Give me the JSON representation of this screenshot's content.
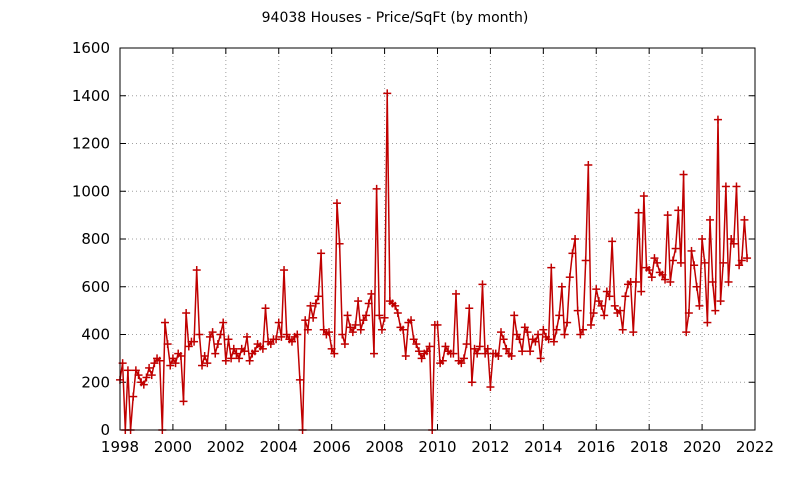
{
  "chart_data": {
    "type": "line",
    "title": "94038 Houses - Price/SqFt (by month)",
    "xlabel": "",
    "ylabel": "",
    "xlim": [
      1998,
      2022
    ],
    "ylim": [
      0,
      1600
    ],
    "grid": true,
    "legend": "none",
    "x_ticks": [
      "1998",
      "2000",
      "2002",
      "2004",
      "2006",
      "2008",
      "2010",
      "2012",
      "2014",
      "2016",
      "2018",
      "2020",
      "2022"
    ],
    "y_ticks": [
      "0",
      "200",
      "400",
      "600",
      "800",
      "1000",
      "1200",
      "1400",
      "1600"
    ],
    "series_color": "#c00000",
    "series": [
      {
        "x": [
          1998.0,
          1998.1,
          1998.2,
          1998.3,
          1998.4,
          1998.5,
          1998.6,
          1998.7,
          1998.8,
          1998.9,
          1999.0,
          1999.1,
          1999.2,
          1999.3,
          1999.4,
          1999.5,
          1999.6,
          1999.7,
          1999.8,
          1999.9,
          2000.0,
          2000.1,
          2000.2,
          2000.3,
          2000.4,
          2000.5,
          2000.6,
          2000.7,
          2000.8,
          2000.9,
          2001.0,
          2001.1,
          2001.2,
          2001.3,
          2001.4,
          2001.5,
          2001.6,
          2001.7,
          2001.8,
          2001.9,
          2002.0,
          2002.1,
          2002.2,
          2002.3,
          2002.4,
          2002.5,
          2002.6,
          2002.7,
          2002.8,
          2002.9,
          2003.0,
          2003.1,
          2003.2,
          2003.3,
          2003.4,
          2003.5,
          2003.6,
          2003.7,
          2003.8,
          2003.9,
          2004.0,
          2004.1,
          2004.2,
          2004.3,
          2004.4,
          2004.5,
          2004.6,
          2004.7,
          2004.8,
          2004.9,
          2005.0,
          2005.1,
          2005.2,
          2005.3,
          2005.4,
          2005.5,
          2005.6,
          2005.7,
          2005.8,
          2005.9,
          2006.0,
          2006.1,
          2006.2,
          2006.3,
          2006.4,
          2006.5,
          2006.6,
          2006.7,
          2006.8,
          2006.9,
          2007.0,
          2007.1,
          2007.2,
          2007.3,
          2007.4,
          2007.5,
          2007.6,
          2007.7,
          2007.8,
          2007.9,
          2008.0,
          2008.1,
          2008.2,
          2008.3,
          2008.4,
          2008.5,
          2008.6,
          2008.7,
          2008.8,
          2008.9,
          2009.0,
          2009.1,
          2009.2,
          2009.3,
          2009.4,
          2009.5,
          2009.6,
          2009.7,
          2009.8,
          2009.9,
          2010.0,
          2010.1,
          2010.2,
          2010.3,
          2010.4,
          2010.5,
          2010.6,
          2010.7,
          2010.8,
          2010.9,
          2011.0,
          2011.1,
          2011.2,
          2011.3,
          2011.4,
          2011.5,
          2011.6,
          2011.7,
          2011.8,
          2011.9,
          2012.0,
          2012.1,
          2012.2,
          2012.3,
          2012.4,
          2012.5,
          2012.6,
          2012.7,
          2012.8,
          2012.9,
          2013.0,
          2013.1,
          2013.2,
          2013.3,
          2013.4,
          2013.5,
          2013.6,
          2013.7,
          2013.8,
          2013.9,
          2014.0,
          2014.1,
          2014.2,
          2014.3,
          2014.4,
          2014.5,
          2014.6,
          2014.7,
          2014.8,
          2014.9,
          2015.0,
          2015.1,
          2015.2,
          2015.3,
          2015.4,
          2015.5,
          2015.6,
          2015.7,
          2015.8,
          2015.9,
          2016.0,
          2016.1,
          2016.2,
          2016.3,
          2016.4,
          2016.5,
          2016.6,
          2016.7,
          2016.8,
          2016.9,
          2017.0,
          2017.1,
          2017.2,
          2017.3,
          2017.4,
          2017.5,
          2017.6,
          2017.7,
          2017.8,
          2017.9,
          2018.0,
          2018.1,
          2018.2,
          2018.3,
          2018.4,
          2018.5,
          2018.6,
          2018.7,
          2018.8,
          2018.9,
          2019.0,
          2019.1,
          2019.2,
          2019.3,
          2019.4,
          2019.5,
          2019.6,
          2019.7,
          2019.8,
          2019.9,
          2020.0,
          2020.1,
          2020.2,
          2020.3,
          2020.4,
          2020.5,
          2020.6,
          2020.7,
          2020.8,
          2020.9,
          2021.0,
          2021.1,
          2021.2,
          2021.3,
          2021.4,
          2021.5,
          2021.6,
          2021.7
        ],
        "y": [
          210,
          280,
          0,
          250,
          0,
          140,
          250,
          230,
          200,
          190,
          220,
          260,
          230,
          280,
          300,
          290,
          0,
          450,
          360,
          270,
          300,
          280,
          320,
          310,
          120,
          490,
          350,
          370,
          370,
          670,
          400,
          270,
          310,
          280,
          390,
          410,
          320,
          360,
          400,
          450,
          290,
          380,
          300,
          340,
          320,
          300,
          340,
          330,
          390,
          290,
          320,
          330,
          360,
          350,
          340,
          510,
          370,
          360,
          380,
          380,
          450,
          390,
          670,
          400,
          380,
          370,
          390,
          400,
          210,
          0,
          460,
          420,
          520,
          470,
          530,
          560,
          740,
          420,
          400,
          410,
          340,
          320,
          950,
          780,
          400,
          360,
          480,
          430,
          410,
          440,
          540,
          420,
          460,
          480,
          530,
          570,
          320,
          1010,
          480,
          420,
          470,
          1410,
          540,
          530,
          520,
          490,
          430,
          420,
          310,
          450,
          460,
          380,
          360,
          330,
          300,
          320,
          330,
          350,
          0,
          440,
          440,
          280,
          290,
          350,
          330,
          320,
          320,
          570,
          290,
          280,
          300,
          360,
          510,
          200,
          340,
          320,
          350,
          610,
          320,
          340,
          180,
          320,
          320,
          310,
          410,
          380,
          340,
          320,
          310,
          480,
          400,
          380,
          330,
          430,
          410,
          330,
          380,
          370,
          400,
          300,
          420,
          390,
          380,
          680,
          370,
          420,
          480,
          600,
          400,
          450,
          640,
          740,
          800,
          500,
          400,
          420,
          710,
          1110,
          440,
          490,
          590,
          540,
          520,
          480,
          580,
          560,
          790,
          520,
          490,
          500,
          420,
          560,
          610,
          620,
          410,
          620,
          910,
          580,
          980,
          680,
          670,
          640,
          720,
          700,
          660,
          650,
          630,
          900,
          620,
          710,
          760,
          920,
          700,
          1070,
          410,
          490,
          750,
          690,
          600,
          520,
          800,
          700,
          450,
          880,
          620,
          500,
          1300,
          540,
          700,
          1020,
          620,
          800,
          780,
          1020,
          690,
          710,
          880,
          720
        ]
      }
    ]
  }
}
